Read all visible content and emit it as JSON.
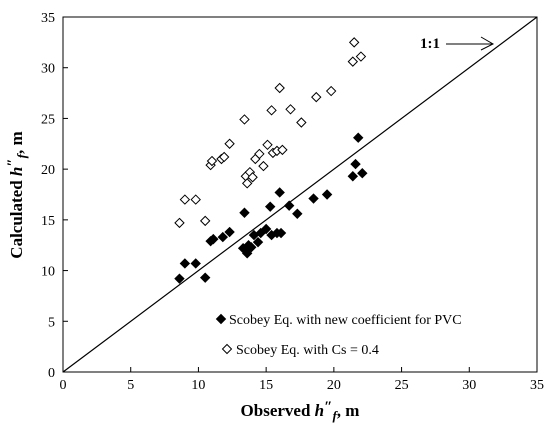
{
  "chart_data": {
    "type": "scatter",
    "title": "",
    "xlabel": {
      "prefix": "Observed ",
      "var": "h",
      "sup": "″",
      "sub": "f",
      "suffix": ", m"
    },
    "ylabel": {
      "prefix": "Calculated ",
      "var": "h",
      "sup": "″",
      "sub": "f",
      "suffix": ", m"
    },
    "xlim": [
      0,
      35
    ],
    "ylim": [
      0,
      35
    ],
    "xticks": [
      0,
      5,
      10,
      15,
      20,
      25,
      30,
      35
    ],
    "yticks": [
      0,
      5,
      10,
      15,
      20,
      25,
      30,
      35
    ],
    "grid": false,
    "legend_position": "bottom-right",
    "reference_line": {
      "label": "1:1",
      "from": [
        0,
        0
      ],
      "to": [
        35,
        35
      ]
    },
    "series": [
      {
        "name": "Scobey Eq. with new coefficient for PVC",
        "marker": "filled-diamond",
        "color": "#000000",
        "x": [
          8.6,
          9.0,
          9.8,
          10.5,
          10.9,
          11.1,
          11.8,
          12.3,
          13.3,
          13.4,
          13.5,
          13.6,
          13.7,
          13.9,
          14.1,
          14.4,
          14.6,
          15.0,
          15.3,
          15.4,
          15.8,
          16.0,
          16.1,
          16.7,
          17.3,
          18.5,
          19.5,
          21.4,
          21.6,
          21.8,
          22.1
        ],
        "y": [
          9.2,
          10.7,
          10.7,
          9.3,
          12.9,
          13.1,
          13.3,
          13.8,
          12.2,
          15.7,
          12.0,
          11.7,
          12.5,
          12.3,
          13.5,
          12.8,
          13.7,
          14.1,
          16.3,
          13.5,
          13.7,
          17.7,
          13.7,
          16.4,
          15.6,
          17.1,
          17.5,
          19.3,
          20.5,
          23.1,
          19.6
        ]
      },
      {
        "name": "Scobey Eq. with Cs = 0.4",
        "marker": "open-diamond",
        "color": "#000000",
        "x": [
          8.6,
          9.0,
          9.8,
          10.5,
          10.9,
          11.0,
          11.7,
          11.9,
          12.3,
          13.4,
          13.5,
          13.6,
          13.8,
          14.0,
          14.2,
          14.5,
          14.8,
          15.1,
          15.4,
          15.5,
          15.8,
          16.0,
          16.2,
          16.8,
          17.6,
          18.7,
          19.8,
          21.4,
          21.5,
          22.0
        ],
        "y": [
          14.7,
          17.0,
          17.0,
          14.9,
          20.4,
          20.8,
          21.0,
          21.2,
          22.5,
          24.9,
          19.3,
          18.6,
          19.7,
          19.2,
          21.0,
          21.5,
          20.3,
          22.4,
          25.8,
          21.6,
          21.8,
          28.0,
          21.9,
          25.9,
          24.6,
          27.1,
          27.7,
          30.6,
          32.5,
          31.1
        ]
      }
    ]
  }
}
